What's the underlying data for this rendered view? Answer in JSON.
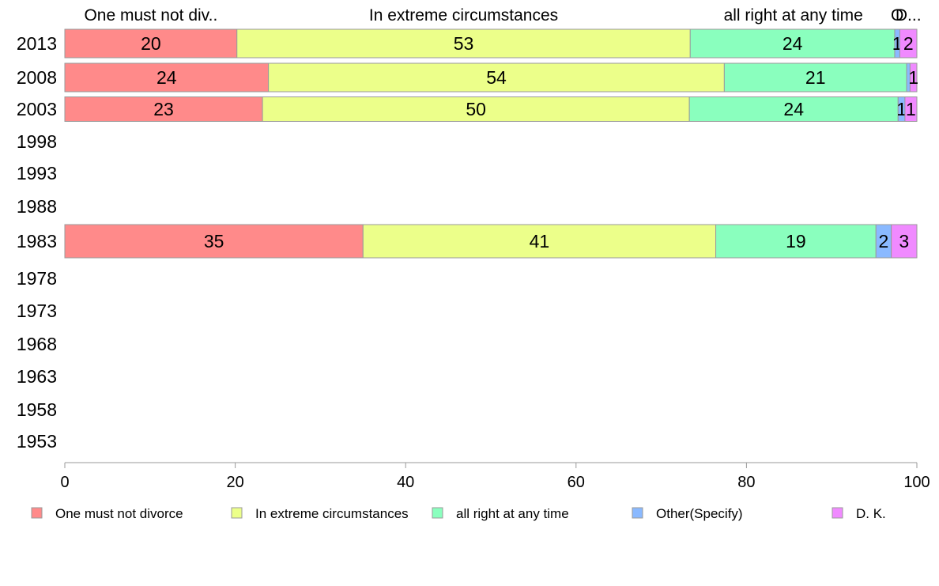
{
  "chart_data": {
    "type": "bar",
    "orientation": "horizontal",
    "stacked": true,
    "categories": [
      "2013",
      "2008",
      "2003",
      "1998",
      "1993",
      "1988",
      "1983",
      "1978",
      "1973",
      "1968",
      "1963",
      "1958",
      "1953"
    ],
    "series": [
      {
        "name": "One must not divorce",
        "color": "#ff8a8a",
        "values": [
          20.2,
          23.9,
          23.2,
          null,
          null,
          null,
          35.0,
          null,
          null,
          null,
          null,
          null,
          null
        ],
        "labels": [
          "20",
          "24",
          "23",
          "",
          "",
          "",
          "35",
          "",
          "",
          "",
          "",
          "",
          ""
        ]
      },
      {
        "name": "In extreme circumstances",
        "color": "#ecff8a",
        "values": [
          53.2,
          53.5,
          50.1,
          null,
          null,
          null,
          41.4,
          null,
          null,
          null,
          null,
          null,
          null
        ],
        "labels": [
          "53",
          "54",
          "50",
          "",
          "",
          "",
          "41",
          "",
          "",
          "",
          "",
          "",
          ""
        ]
      },
      {
        "name": "all right at any time",
        "color": "#8affbe",
        "values": [
          24.0,
          21.4,
          24.5,
          null,
          null,
          null,
          18.8,
          null,
          null,
          null,
          null,
          null,
          null
        ],
        "labels": [
          "24",
          "21",
          "24",
          "",
          "",
          "",
          "19",
          "",
          "",
          "",
          "",
          "",
          ""
        ]
      },
      {
        "name": "Other(Specify)",
        "color": "#8ab9ff",
        "values": [
          0.6,
          0.4,
          0.8,
          null,
          null,
          null,
          1.8,
          null,
          null,
          null,
          null,
          null,
          null
        ],
        "labels": [
          "1",
          "",
          "1",
          "",
          "",
          "",
          "2",
          "",
          "",
          "",
          "",
          "",
          ""
        ]
      },
      {
        "name": "D. K.",
        "color": "#f08aff",
        "values": [
          2.0,
          0.8,
          1.4,
          null,
          null,
          null,
          3.0,
          null,
          null,
          null,
          null,
          null,
          null
        ],
        "labels": [
          "2",
          "1",
          "1",
          "",
          "",
          "",
          "3",
          "",
          "",
          "",
          "",
          "",
          ""
        ]
      }
    ],
    "top_labels": [
      {
        "text": "One must not div..",
        "at": 10.1
      },
      {
        "text": "In extreme circumstances",
        "at": 46.8
      },
      {
        "text": "all right at any time",
        "at": 85.5
      },
      {
        "text": "O",
        "at": 97.7
      },
      {
        "text": "D...",
        "at": 99.0
      }
    ],
    "xlim": [
      0,
      100
    ],
    "xticks": [
      0,
      20,
      40,
      60,
      80,
      100
    ],
    "grid": false,
    "legend_position": "bottom"
  }
}
